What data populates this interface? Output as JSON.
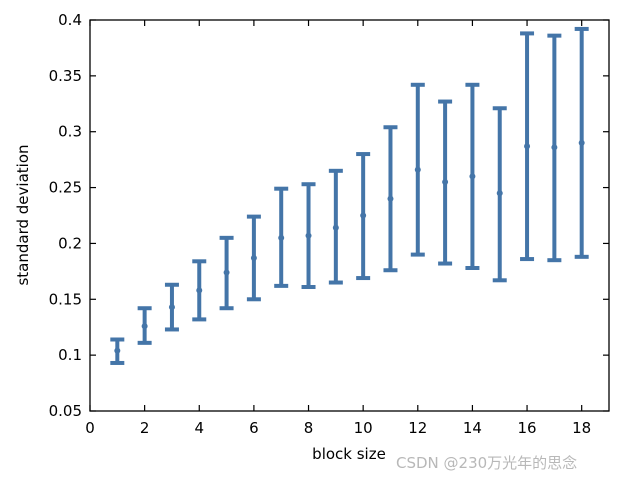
{
  "chart_data": {
    "type": "scatter",
    "xlabel": "block size",
    "ylabel": "standard deviation",
    "xlim": [
      0,
      19
    ],
    "ylim": [
      0.05,
      0.4
    ],
    "xticks": [
      0,
      2,
      4,
      6,
      8,
      10,
      12,
      14,
      16,
      18
    ],
    "yticks": [
      0.05,
      0.1,
      0.15,
      0.2,
      0.25,
      0.3,
      0.35,
      0.4
    ],
    "xtick_labels": [
      "0",
      "2",
      "4",
      "6",
      "8",
      "10",
      "12",
      "14",
      "16",
      "18"
    ],
    "ytick_labels": [
      "0.05",
      "0.1",
      "0.15",
      "0.2",
      "0.25",
      "0.3",
      "0.35",
      "0.4"
    ],
    "series": [
      {
        "error_bars": true,
        "color": "#4475a8",
        "points": [
          {
            "x": 1,
            "y": 0.104,
            "low": 0.093,
            "high": 0.114
          },
          {
            "x": 2,
            "y": 0.126,
            "low": 0.111,
            "high": 0.142
          },
          {
            "x": 3,
            "y": 0.143,
            "low": 0.123,
            "high": 0.163
          },
          {
            "x": 4,
            "y": 0.158,
            "low": 0.132,
            "high": 0.184
          },
          {
            "x": 5,
            "y": 0.174,
            "low": 0.142,
            "high": 0.205
          },
          {
            "x": 6,
            "y": 0.187,
            "low": 0.15,
            "high": 0.224
          },
          {
            "x": 7,
            "y": 0.205,
            "low": 0.162,
            "high": 0.249
          },
          {
            "x": 8,
            "y": 0.207,
            "low": 0.161,
            "high": 0.253
          },
          {
            "x": 9,
            "y": 0.214,
            "low": 0.165,
            "high": 0.265
          },
          {
            "x": 10,
            "y": 0.225,
            "low": 0.169,
            "high": 0.28
          },
          {
            "x": 11,
            "y": 0.24,
            "low": 0.176,
            "high": 0.304
          },
          {
            "x": 12,
            "y": 0.266,
            "low": 0.19,
            "high": 0.342
          },
          {
            "x": 13,
            "y": 0.255,
            "low": 0.182,
            "high": 0.327
          },
          {
            "x": 14,
            "y": 0.26,
            "low": 0.178,
            "high": 0.342
          },
          {
            "x": 15,
            "y": 0.245,
            "low": 0.167,
            "high": 0.321
          },
          {
            "x": 16,
            "y": 0.287,
            "low": 0.186,
            "high": 0.388
          },
          {
            "x": 17,
            "y": 0.286,
            "low": 0.185,
            "high": 0.386
          },
          {
            "x": 18,
            "y": 0.29,
            "low": 0.188,
            "high": 0.392
          }
        ]
      }
    ],
    "grid": false,
    "watermark": "CSDN @230万光年的思念"
  }
}
